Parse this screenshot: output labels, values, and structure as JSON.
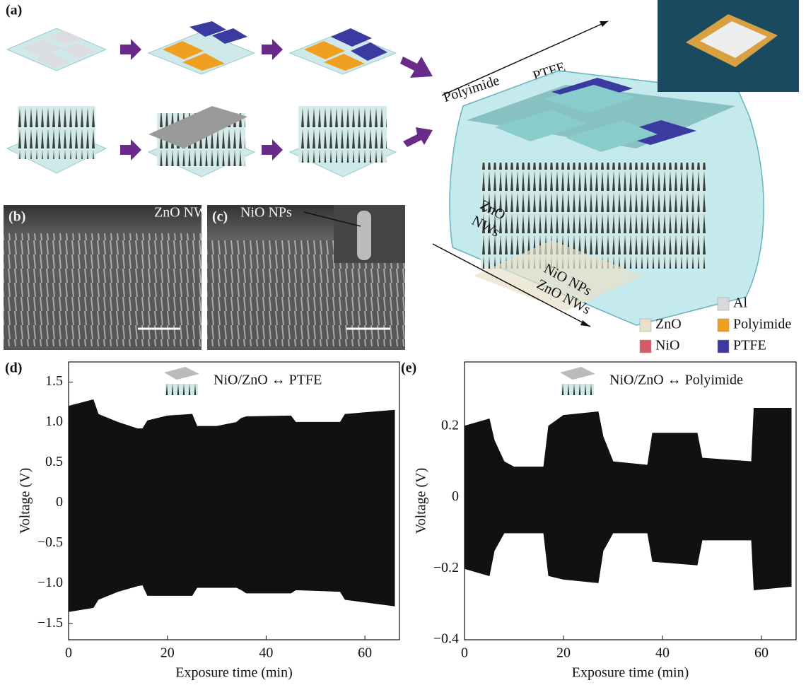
{
  "panels": {
    "a": "(a)",
    "b": "(b)",
    "c": "(c)",
    "d": "(d)",
    "e": "(e)"
  },
  "schematic": {
    "polyimide": "Polyimide",
    "ptfe": "PTFE",
    "zno_nws": "ZnO NWs",
    "nio_nps": "NiO NPs",
    "side_zno_1": "ZnO",
    "side_zno_2": "NWs",
    "side_nio_1": "NiO NPs",
    "side_nio_2": "ZnO NWs",
    "legend": [
      {
        "label": "Al",
        "color": "#d7d9dd"
      },
      {
        "label": "ZnO",
        "color": "#e8e0c8"
      },
      {
        "label": "Polyimide",
        "color": "#f0a020"
      },
      {
        "label": "NiO",
        "color": "#d65a6a"
      },
      {
        "label": "PTFE",
        "color": "#3a3aa0"
      }
    ]
  },
  "chart_data": [
    {
      "type": "band",
      "panel": "(d)",
      "inset": "NiO/ZnO ↔ PTFE",
      "xlabel": "Exposure time (min)",
      "ylabel": "Voltage (V)",
      "color": "#111111",
      "x": [
        0,
        5,
        6,
        10,
        14,
        15,
        16,
        20,
        25,
        26,
        30,
        34,
        35,
        36,
        45,
        46,
        55,
        56,
        66
      ],
      "high": [
        1.2,
        1.28,
        1.1,
        1.0,
        0.92,
        0.92,
        1.02,
        1.08,
        1.1,
        0.95,
        0.95,
        1.0,
        1.05,
        1.07,
        1.08,
        1.0,
        1.0,
        1.1,
        1.15
      ],
      "low": [
        -1.35,
        -1.3,
        -1.2,
        -1.1,
        -1.03,
        -1.02,
        -1.15,
        -1.15,
        -1.15,
        -1.05,
        -1.05,
        -1.05,
        -1.08,
        -1.12,
        -1.12,
        -1.08,
        -1.1,
        -1.2,
        -1.28
      ],
      "xlim": [
        0,
        67
      ],
      "ylim": [
        -1.7,
        1.75
      ],
      "xticks": [
        0,
        20,
        40,
        60
      ],
      "yticks": [
        {
          "value": -1.5,
          "label": "−1.5"
        },
        {
          "value": -1.0,
          "label": "−1.0"
        },
        {
          "value": -0.5,
          "label": "−0.5"
        },
        0,
        0.5,
        {
          "value": 1.0,
          "label": "1.0"
        },
        1.5
      ]
    },
    {
      "type": "band",
      "panel": "(e)",
      "inset": "NiO/ZnO ↔ Polyimide",
      "xlabel": "Exposure time (min)",
      "ylabel": "Voltage (V)",
      "color": "#111111",
      "x": [
        0,
        5,
        6,
        8,
        10,
        16,
        17,
        20,
        27,
        28,
        30,
        37,
        38,
        47,
        48,
        58,
        58.5,
        66
      ],
      "high": [
        0.2,
        0.22,
        0.16,
        0.1,
        0.085,
        0.085,
        0.2,
        0.23,
        0.24,
        0.17,
        0.1,
        0.09,
        0.18,
        0.18,
        0.11,
        0.1,
        0.25,
        0.25
      ],
      "low": [
        -0.2,
        -0.22,
        -0.15,
        -0.1,
        -0.1,
        -0.1,
        -0.22,
        -0.23,
        -0.24,
        -0.15,
        -0.1,
        -0.1,
        -0.18,
        -0.19,
        -0.12,
        -0.12,
        -0.26,
        -0.25
      ],
      "xlim": [
        0,
        67
      ],
      "ylim": [
        -0.4,
        0.38
      ],
      "xticks": [
        0,
        20,
        40,
        60
      ],
      "yticks": [
        {
          "value": -0.4,
          "label": "−0.4"
        },
        {
          "value": -0.2,
          "label": "−0.2"
        },
        0,
        0.2
      ]
    }
  ]
}
